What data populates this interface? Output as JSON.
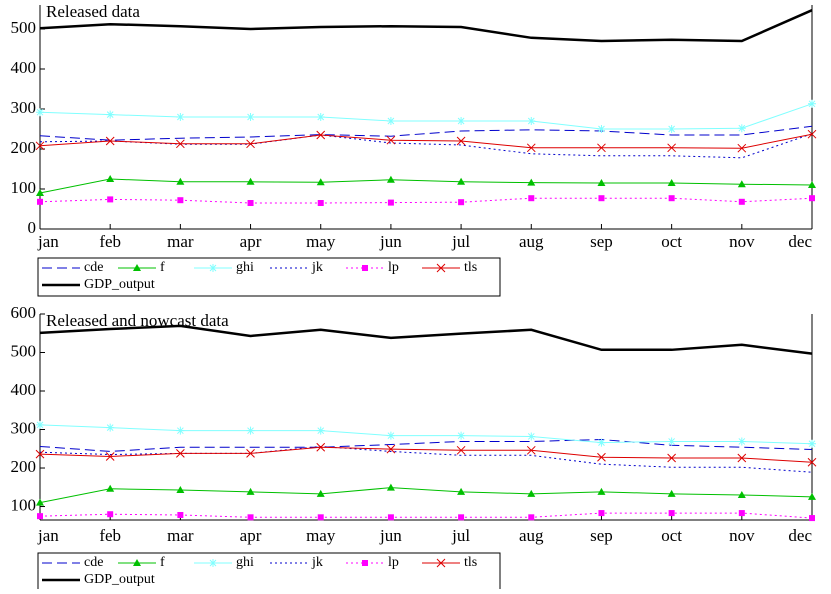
{
  "chart_data": [
    {
      "type": "line",
      "title": "Released data",
      "categories": [
        "jan",
        "feb",
        "mar",
        "apr",
        "may",
        "jun",
        "jul",
        "aug",
        "sep",
        "oct",
        "nov",
        "dec"
      ],
      "ylim": [
        0,
        560
      ],
      "yticks": [
        0,
        100,
        200,
        300,
        400,
        500
      ],
      "grid": false,
      "series": [
        {
          "name": "cde",
          "color": "#0000cc",
          "dash": "dash",
          "marker": "none",
          "values": [
            233,
            222,
            227,
            230,
            236,
            232,
            245,
            248,
            245,
            235,
            235,
            257
          ]
        },
        {
          "name": "f",
          "color": "#00c000",
          "dash": "solid",
          "marker": "triangle",
          "values": [
            90,
            125,
            118,
            118,
            117,
            123,
            118,
            116,
            115,
            115,
            112,
            110
          ]
        },
        {
          "name": "ghi",
          "color": "#80ffff",
          "dash": "solid",
          "marker": "star",
          "values": [
            292,
            286,
            280,
            280,
            280,
            270,
            270,
            270,
            250,
            250,
            252,
            313
          ]
        },
        {
          "name": "jk",
          "color": "#0000cc",
          "dash": "dot",
          "marker": "none",
          "values": [
            218,
            220,
            212,
            212,
            235,
            215,
            210,
            188,
            183,
            183,
            178,
            238
          ]
        },
        {
          "name": "lp",
          "color": "#ff00ff",
          "dash": "dot",
          "marker": "square",
          "values": [
            68,
            74,
            72,
            65,
            65,
            66,
            67,
            77,
            77,
            77,
            68,
            77
          ]
        },
        {
          "name": "tls",
          "color": "#dd0000",
          "dash": "solid",
          "marker": "x",
          "values": [
            208,
            220,
            213,
            213,
            235,
            222,
            220,
            203,
            203,
            203,
            202,
            237
          ]
        },
        {
          "name": "GDP_output",
          "color": "#000000",
          "dash": "thick",
          "marker": "none",
          "values": [
            502,
            512,
            507,
            500,
            505,
            507,
            505,
            478,
            470,
            473,
            470,
            547
          ]
        }
      ]
    },
    {
      "type": "line",
      "title": "Released and nowcast data",
      "categories": [
        "jan",
        "feb",
        "mar",
        "apr",
        "may",
        "jun",
        "jul",
        "aug",
        "sep",
        "oct",
        "nov",
        "dec"
      ],
      "ylim": [
        65,
        600
      ],
      "yticks": [
        100,
        200,
        300,
        400,
        500,
        600
      ],
      "grid": false,
      "series": [
        {
          "name": "cde",
          "color": "#0000cc",
          "dash": "dash",
          "marker": "none",
          "values": [
            256,
            243,
            254,
            254,
            254,
            261,
            269,
            269,
            274,
            259,
            254,
            248
          ]
        },
        {
          "name": "f",
          "color": "#00c000",
          "dash": "solid",
          "marker": "triangle",
          "values": [
            110,
            146,
            143,
            138,
            133,
            149,
            138,
            133,
            138,
            133,
            130,
            125
          ]
        },
        {
          "name": "ghi",
          "color": "#80ffff",
          "dash": "solid",
          "marker": "star",
          "values": [
            312,
            305,
            297,
            297,
            297,
            284,
            284,
            282,
            266,
            269,
            269,
            263
          ]
        },
        {
          "name": "jk",
          "color": "#0000cc",
          "dash": "dot",
          "marker": "none",
          "values": [
            241,
            235,
            238,
            238,
            256,
            243,
            233,
            233,
            210,
            202,
            202,
            189
          ]
        },
        {
          "name": "lp",
          "color": "#ff00ff",
          "dash": "dot",
          "marker": "square",
          "values": [
            75,
            80,
            78,
            72,
            72,
            72,
            72,
            72,
            83,
            83,
            83,
            70
          ]
        },
        {
          "name": "tls",
          "color": "#dd0000",
          "dash": "solid",
          "marker": "x",
          "values": [
            236,
            230,
            238,
            238,
            254,
            249,
            246,
            246,
            228,
            226,
            226,
            215
          ]
        },
        {
          "name": "GDP_output",
          "color": "#000000",
          "dash": "thick",
          "marker": "none",
          "values": [
            551,
            561,
            569,
            543,
            559,
            538,
            549,
            559,
            507,
            507,
            520,
            497
          ]
        }
      ]
    }
  ]
}
